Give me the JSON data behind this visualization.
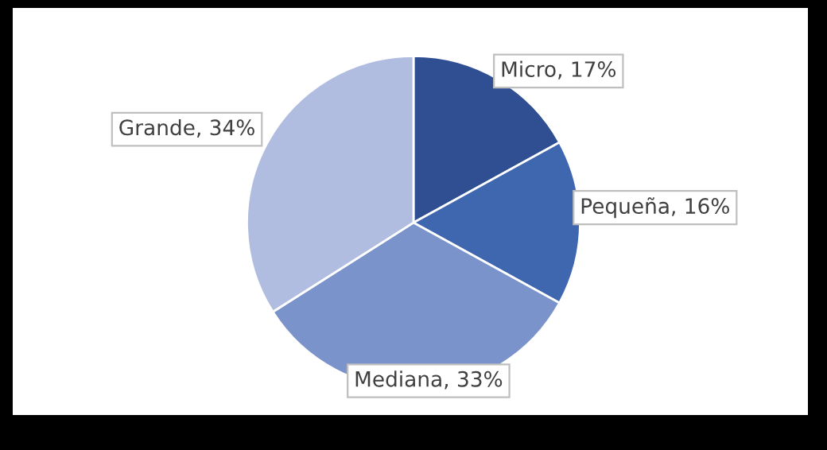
{
  "chart_data": {
    "type": "pie",
    "categories": [
      "Micro",
      "Pequeña",
      "Mediana",
      "Grande"
    ],
    "values": [
      17,
      16,
      33,
      34
    ],
    "colors": [
      "#2f4f92",
      "#3f67b0",
      "#7b93cb",
      "#b0bde0"
    ],
    "value_labels": [
      "17%",
      "16%",
      "33%",
      "34%"
    ]
  }
}
